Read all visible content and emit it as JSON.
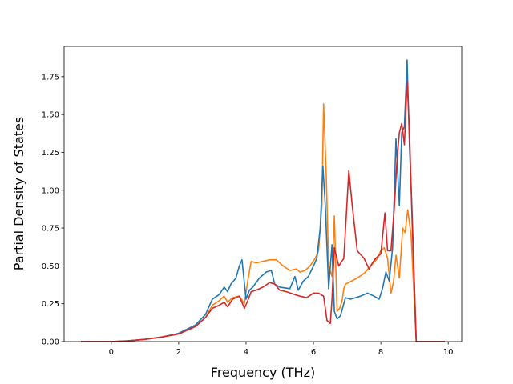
{
  "chart_data": {
    "type": "line",
    "title": "",
    "xlabel": "Frequency (THz)",
    "ylabel": "Partial Density of States",
    "xlim": [
      -1.4,
      10.4
    ],
    "ylim": [
      0,
      1.95
    ],
    "xticks": [
      0,
      2,
      4,
      6,
      8,
      10
    ],
    "yticks": [
      0.0,
      0.25,
      0.5,
      0.75,
      1.0,
      1.25,
      1.5,
      1.75
    ],
    "ytick_labels": [
      "0.00",
      "0.25",
      "0.50",
      "0.75",
      "1.00",
      "1.25",
      "1.50",
      "1.75"
    ],
    "grid": false,
    "legend": "none",
    "series": [
      {
        "color": "#ff7f0e",
        "x": [
          -0.9,
          0,
          0.5,
          1,
          1.5,
          2,
          2.5,
          2.8,
          3.0,
          3.2,
          3.35,
          3.45,
          3.6,
          3.8,
          3.95,
          4.05,
          4.15,
          4.3,
          4.5,
          4.7,
          4.9,
          5.1,
          5.3,
          5.5,
          5.6,
          5.75,
          5.9,
          6.05,
          6.15,
          6.25,
          6.3,
          6.38,
          6.45,
          6.55,
          6.62,
          6.7,
          6.78,
          6.85,
          6.9,
          6.95,
          7.05,
          7.3,
          7.5,
          7.7,
          7.9,
          8.0,
          8.1,
          8.2,
          8.3,
          8.38,
          8.45,
          8.55,
          8.65,
          8.72,
          8.8,
          8.9,
          9.05,
          9.9
        ],
        "y": [
          0,
          0,
          0.005,
          0.015,
          0.03,
          0.05,
          0.1,
          0.16,
          0.24,
          0.27,
          0.3,
          0.26,
          0.29,
          0.3,
          0.25,
          0.4,
          0.53,
          0.52,
          0.53,
          0.54,
          0.54,
          0.5,
          0.47,
          0.48,
          0.46,
          0.47,
          0.5,
          0.55,
          0.6,
          0.9,
          1.57,
          1.1,
          0.5,
          0.43,
          0.83,
          0.2,
          0.22,
          0.27,
          0.35,
          0.38,
          0.39,
          0.42,
          0.45,
          0.5,
          0.55,
          0.6,
          0.62,
          0.55,
          0.32,
          0.4,
          0.57,
          0.42,
          0.75,
          0.72,
          0.87,
          0.7,
          0,
          0
        ]
      },
      {
        "color": "#1f77b4",
        "x": [
          -0.9,
          0,
          0.5,
          1,
          1.5,
          2,
          2.5,
          2.8,
          3.0,
          3.2,
          3.35,
          3.45,
          3.55,
          3.7,
          3.8,
          3.88,
          4.0,
          4.1,
          4.2,
          4.4,
          4.6,
          4.75,
          4.85,
          5.0,
          5.3,
          5.45,
          5.55,
          5.7,
          5.85,
          6.0,
          6.1,
          6.2,
          6.28,
          6.35,
          6.45,
          6.55,
          6.62,
          6.7,
          6.8,
          6.95,
          7.1,
          7.4,
          7.6,
          7.8,
          7.95,
          8.05,
          8.15,
          8.25,
          8.35,
          8.45,
          8.55,
          8.62,
          8.7,
          8.78,
          8.85,
          8.92,
          9.05,
          9.9
        ],
        "y": [
          0,
          0,
          0.005,
          0.015,
          0.03,
          0.055,
          0.11,
          0.18,
          0.28,
          0.31,
          0.36,
          0.33,
          0.38,
          0.42,
          0.5,
          0.54,
          0.28,
          0.34,
          0.36,
          0.42,
          0.46,
          0.47,
          0.38,
          0.36,
          0.35,
          0.43,
          0.34,
          0.4,
          0.43,
          0.5,
          0.55,
          0.75,
          1.16,
          0.9,
          0.35,
          0.64,
          0.2,
          0.15,
          0.17,
          0.29,
          0.28,
          0.3,
          0.32,
          0.3,
          0.28,
          0.35,
          0.46,
          0.4,
          0.62,
          1.34,
          0.9,
          1.38,
          1.42,
          1.86,
          1.3,
          0.9,
          0,
          0
        ]
      },
      {
        "color": "#d62728",
        "x": [
          -0.9,
          0,
          0.5,
          1,
          1.5,
          2,
          2.5,
          2.8,
          3.0,
          3.2,
          3.35,
          3.45,
          3.6,
          3.8,
          3.95,
          4.05,
          4.15,
          4.3,
          4.5,
          4.7,
          4.85,
          5.0,
          5.2,
          5.45,
          5.6,
          5.8,
          6.0,
          6.15,
          6.3,
          6.4,
          6.5,
          6.55,
          6.62,
          6.75,
          6.9,
          6.98,
          7.05,
          7.15,
          7.3,
          7.5,
          7.65,
          7.75,
          7.85,
          8.0,
          8.12,
          8.2,
          8.3,
          8.4,
          8.48,
          8.55,
          8.62,
          8.7,
          8.78,
          8.85,
          8.92,
          9.05,
          9.9
        ],
        "y": [
          0,
          0,
          0.005,
          0.015,
          0.03,
          0.05,
          0.1,
          0.16,
          0.22,
          0.24,
          0.26,
          0.23,
          0.28,
          0.3,
          0.22,
          0.27,
          0.33,
          0.34,
          0.36,
          0.39,
          0.38,
          0.34,
          0.33,
          0.31,
          0.3,
          0.29,
          0.32,
          0.32,
          0.3,
          0.14,
          0.12,
          0.28,
          0.62,
          0.5,
          0.55,
          0.85,
          1.13,
          0.9,
          0.6,
          0.55,
          0.48,
          0.52,
          0.55,
          0.58,
          0.85,
          0.6,
          0.6,
          0.88,
          1.2,
          1.38,
          1.44,
          1.3,
          1.72,
          1.4,
          0.85,
          0,
          0
        ]
      }
    ]
  }
}
